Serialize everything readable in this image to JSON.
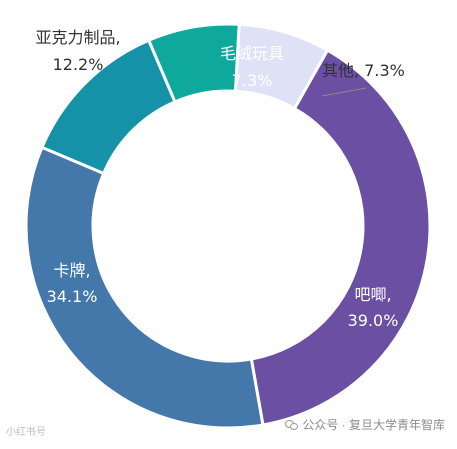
{
  "chart_data": {
    "type": "pie",
    "variant": "donut",
    "categories": [
      "吧唧",
      "卡牌",
      "亚克力制品",
      "毛绒玩具",
      "其他"
    ],
    "values": [
      39.0,
      34.1,
      12.2,
      7.3,
      7.3
    ],
    "labels": [
      {
        "name": "吧唧,",
        "value": "39.0%"
      },
      {
        "name": "卡牌,",
        "value": "34.1%"
      },
      {
        "name": "亚克力制品,",
        "value": "12.2%"
      },
      {
        "name": "毛绒玩具",
        "value": "7.3%"
      },
      {
        "name": "其他, 7.3%",
        "value": ""
      }
    ],
    "colors": [
      "#6a4fa3",
      "#4477aa",
      "#1592a8",
      "#0ea89c",
      "#dfe2f6"
    ],
    "label_colors": [
      "#ffffff",
      "#ffffff",
      "#333333",
      "#ffffff",
      "#333333"
    ],
    "title": "",
    "legend": "none"
  },
  "watermark": {
    "left": "小红书号",
    "right": "公众号 · 复旦大学青年智库",
    "icon": "wechat-icon"
  }
}
